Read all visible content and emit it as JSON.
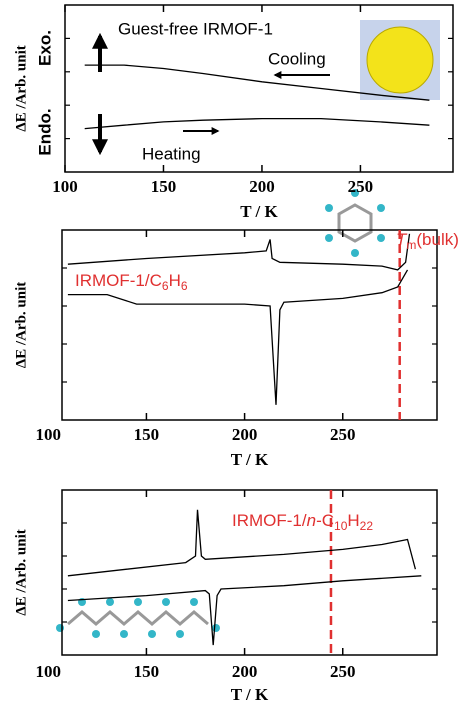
{
  "chart_data": [
    {
      "type": "line",
      "xlabel": "T / K",
      "ylabel": "ΔE /Arb. unit",
      "xlim": [
        100,
        297
      ],
      "ylim": [
        0,
        10
      ],
      "xticks": [
        100,
        150,
        200,
        250
      ],
      "yticks": [
        2,
        4,
        6,
        8
      ],
      "series": [
        {
          "color": "#000000",
          "x": [
            110,
            130,
            150,
            170,
            200,
            230,
            260,
            285
          ],
          "values": [
            6.4,
            6.4,
            6.2,
            5.9,
            5.4,
            5.0,
            4.6,
            4.3
          ]
        },
        {
          "color": "#000000",
          "x": [
            110,
            130,
            150,
            170,
            200,
            230,
            260,
            285
          ],
          "values": [
            2.6,
            2.8,
            3.0,
            3.1,
            3.2,
            3.2,
            3.0,
            2.8
          ]
        }
      ],
      "annotations": [
        {
          "text": "Exo.",
          "color": "#000000"
        },
        {
          "text": "Endo.",
          "color": "#000000"
        },
        {
          "text": "Guest-free IRMOF-1",
          "color": "#000000"
        },
        {
          "text": "Cooling",
          "color": "#000000"
        },
        {
          "text": "Heating",
          "color": "#000000"
        }
      ]
    },
    {
      "type": "line",
      "xlabel": "T / K",
      "ylabel": "ΔE /Arb. unit",
      "xlim": [
        107,
        298
      ],
      "ylim": [
        0,
        10
      ],
      "xticks": [
        100,
        150,
        200,
        250
      ],
      "yticks": [
        2,
        4,
        6,
        8
      ],
      "series": [
        {
          "color": "#000000",
          "x": [
            110,
            150,
            200,
            211,
            213,
            214,
            218,
            250,
            270,
            278,
            282,
            284
          ],
          "values": [
            8.2,
            8.5,
            8.8,
            8.9,
            9.5,
            8.5,
            8.3,
            8.2,
            8.1,
            7.9,
            8.3,
            9.8
          ]
        },
        {
          "color": "#000000",
          "x": [
            110,
            130,
            145,
            200,
            213,
            216,
            218,
            220,
            250,
            270,
            278,
            283
          ],
          "values": [
            6.6,
            6.6,
            6.1,
            6.1,
            6.0,
            0.8,
            5.8,
            6.2,
            6.4,
            6.7,
            7.0,
            7.9
          ]
        }
      ],
      "markers": [
        {
          "x": 279,
          "color": "#e03030"
        }
      ],
      "annotations": [
        {
          "parts": [
            {
              "text": "IRMOF-1/C"
            },
            {
              "text": "6",
              "sub": true
            },
            {
              "text": "H"
            },
            {
              "text": "6",
              "sub": true
            }
          ],
          "color": "#e03030"
        },
        {
          "parts": [
            {
              "text": "T",
              "italic": true
            },
            {
              "text": "m",
              "sub": true
            },
            {
              "text": "(bulk)"
            }
          ],
          "color": "#e03030"
        }
      ]
    },
    {
      "type": "line",
      "xlabel": "T / K",
      "ylabel": "ΔE /Arb. unit",
      "xlim": [
        107,
        298
      ],
      "ylim": [
        0,
        10
      ],
      "xticks": [
        100,
        150,
        200,
        250
      ],
      "yticks": [
        2,
        4,
        6,
        8
      ],
      "series": [
        {
          "color": "#000000",
          "x": [
            110,
            140,
            170,
            175,
            176,
            178,
            180,
            220,
            250,
            270,
            283,
            287
          ],
          "values": [
            4.8,
            5.2,
            5.6,
            6.0,
            8.8,
            6.0,
            5.8,
            6.1,
            6.4,
            6.7,
            7.0,
            5.2
          ]
        },
        {
          "color": "#000000",
          "x": [
            110,
            150,
            180,
            182,
            184,
            186,
            188,
            220,
            250,
            290
          ],
          "values": [
            3.3,
            3.6,
            3.9,
            3.7,
            0.6,
            3.6,
            4.0,
            4.2,
            4.5,
            4.8
          ]
        }
      ],
      "markers": [
        {
          "x": 244,
          "color": "#e03030"
        }
      ],
      "annotations": [
        {
          "parts": [
            {
              "text": "IRMOF-1/"
            },
            {
              "text": "n",
              "italic": true
            },
            {
              "text": "-C"
            },
            {
              "text": "10",
              "sub": true
            },
            {
              "text": "H"
            },
            {
              "text": "22",
              "sub": true
            }
          ],
          "color": "#e03030"
        }
      ]
    }
  ]
}
